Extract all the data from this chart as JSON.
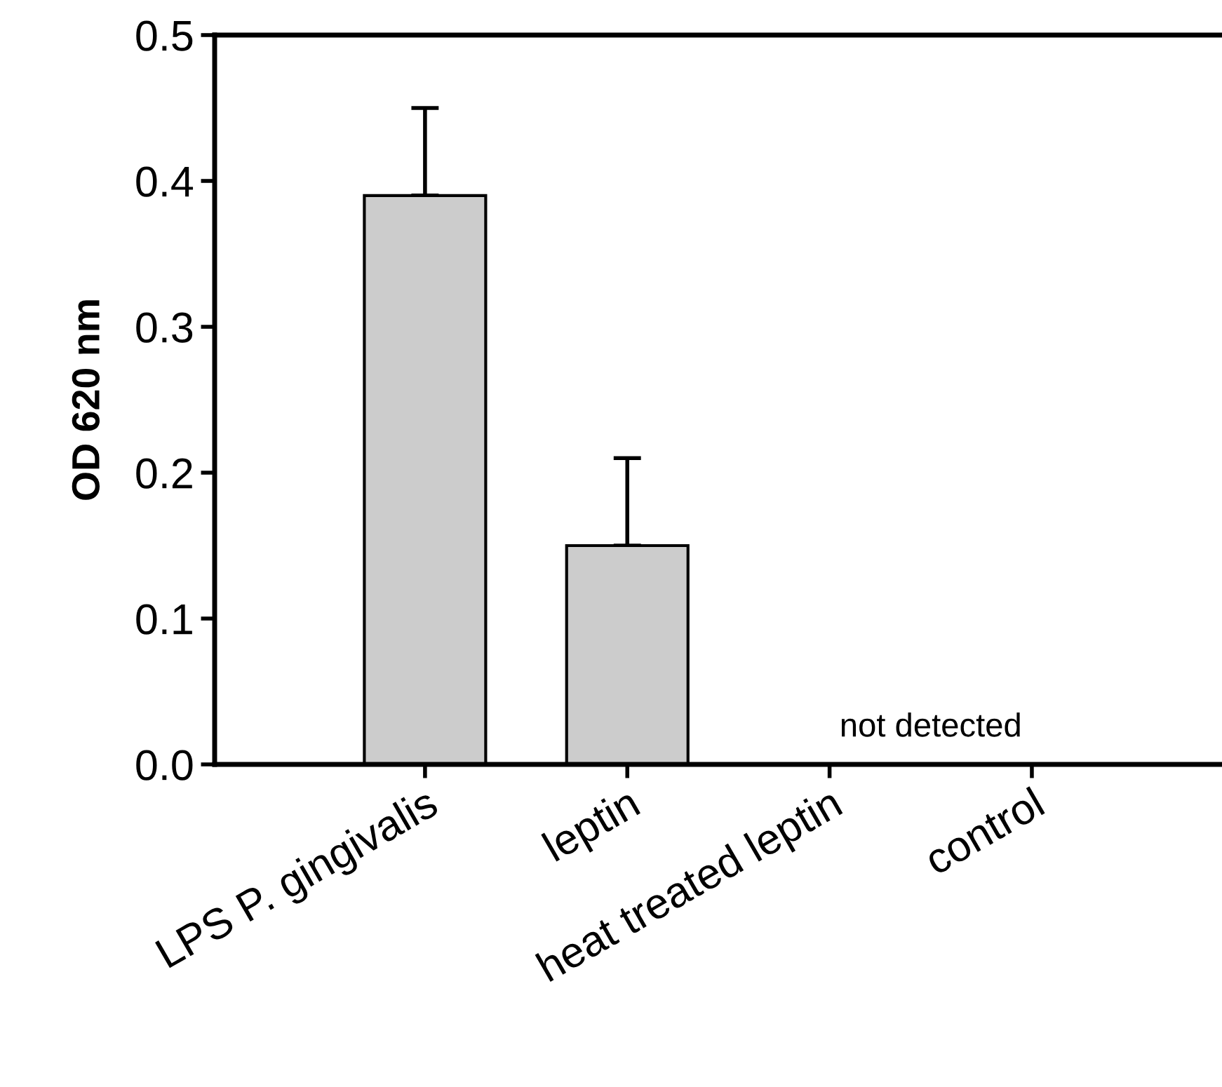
{
  "chart_data": {
    "type": "bar",
    "ylabel": "OD 620 nm",
    "categories": [
      "LPS P. gingivalis",
      "leptin",
      "heat treated leptin",
      "control"
    ],
    "values": [
      0.39,
      0.15,
      null,
      null
    ],
    "errors": [
      [
        0.39,
        0.45
      ],
      [
        0.15,
        0.21
      ],
      null,
      null
    ],
    "color": "#cccccc",
    "ylim": [
      0,
      0.5
    ],
    "yticks": [
      {
        "value": 0,
        "label": "0.0"
      },
      0.1,
      0.2,
      0.3,
      0.4,
      0.5
    ],
    "annotations": [
      "not detected"
    ]
  }
}
